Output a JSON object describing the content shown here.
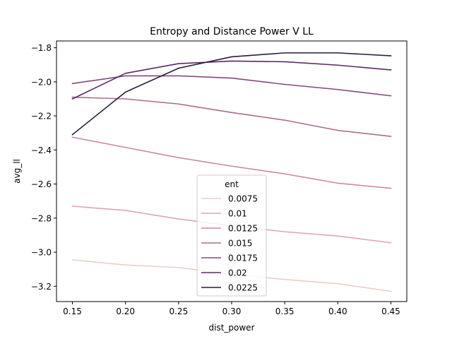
{
  "chart_data": {
    "type": "line",
    "title": "Entropy and Distance Power V LL",
    "xlabel": "dist_power",
    "ylabel": "avg_ll",
    "x": [
      0.15,
      0.2,
      0.25,
      0.3,
      0.35,
      0.4,
      0.45
    ],
    "xticks": [
      "0.15",
      "0.20",
      "0.25",
      "0.30",
      "0.35",
      "0.40",
      "0.45"
    ],
    "yticks": [
      -3.2,
      -3.0,
      -2.8,
      -2.6,
      -2.4,
      -2.2,
      -2.0,
      -1.8
    ],
    "ytick_labels": [
      "−3.2",
      "−3.0",
      "−2.8",
      "−2.6",
      "−2.4",
      "−2.2",
      "−2.0",
      "−1.8"
    ],
    "xlim": [
      0.135,
      0.465
    ],
    "ylim": [
      -3.29,
      -1.76
    ],
    "legend_title": "ent",
    "legend_position": "lower-center",
    "grid": false,
    "series": [
      {
        "name": "0.0075",
        "color": "#ebcfc9",
        "values": [
          -3.045,
          -3.075,
          -3.09,
          -3.13,
          -3.16,
          -3.185,
          -3.23
        ]
      },
      {
        "name": "0.01",
        "color": "#dba8ad",
        "values": [
          -2.73,
          -2.755,
          -2.805,
          -2.845,
          -2.88,
          -2.905,
          -2.945
        ]
      },
      {
        "name": "0.0125",
        "color": "#c9899c",
        "values": [
          -2.325,
          -2.385,
          -2.445,
          -2.495,
          -2.54,
          -2.595,
          -2.625
        ]
      },
      {
        "name": "0.015",
        "color": "#ab6c8e",
        "values": [
          -2.09,
          -2.1,
          -2.13,
          -2.18,
          -2.225,
          -2.285,
          -2.32
        ]
      },
      {
        "name": "0.0175",
        "color": "#824a7a",
        "values": [
          -2.01,
          -1.965,
          -1.965,
          -1.978,
          -2.015,
          -2.045,
          -2.082
        ]
      },
      {
        "name": "0.02",
        "color": "#582c61",
        "values": [
          -2.1,
          -1.95,
          -1.893,
          -1.878,
          -1.882,
          -1.902,
          -1.93
        ]
      },
      {
        "name": "0.0225",
        "color": "#2d1c3d",
        "values": [
          -2.31,
          -2.06,
          -1.92,
          -1.853,
          -1.83,
          -1.83,
          -1.847
        ]
      }
    ]
  }
}
